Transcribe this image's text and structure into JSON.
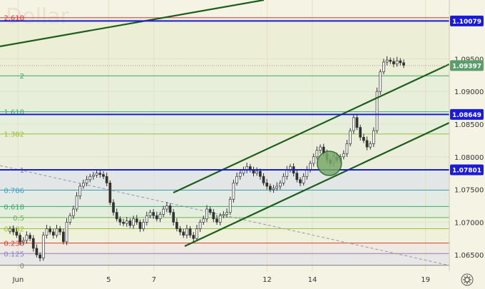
{
  "watermark": "S. Dollar",
  "settings_icon": "gear-icon",
  "chart_data": {
    "type": "candlestick",
    "ylim": [
      1.0625,
      1.104
    ],
    "y_ticks": [
      1.065,
      1.07,
      1.075,
      1.08,
      1.085,
      1.09,
      1.095
    ],
    "y_tick_labels": [
      "1.06500",
      "1.07000",
      "1.07500",
      "1.08000",
      "1.08500",
      "1.09000",
      "1.09500"
    ],
    "x_ticks": [
      {
        "label": "Jun",
        "x": 3
      },
      {
        "label": "5",
        "x": 7
      },
      {
        "label": "7",
        "x": 9
      },
      {
        "label": "12",
        "x": 14
      },
      {
        "label": "14",
        "x": 16
      },
      {
        "label": "19",
        "x": 21
      }
    ],
    "xlim": [
      2.2,
      22.05
    ],
    "price_tags": [
      {
        "label": "1.10079",
        "value": 1.10079,
        "color": "#1a1adb"
      },
      {
        "label": "1.09397",
        "value": 1.09397,
        "color": "#5b9e6e"
      },
      {
        "label": "1.08649",
        "value": 1.08649,
        "color": "#1a1adb"
      },
      {
        "label": "1.07801",
        "value": 1.07801,
        "color": "#1a1adb"
      }
    ],
    "fib_levels": [
      {
        "label": "0",
        "value": 1.0634,
        "color": "#808080"
      },
      {
        "label": "0.125",
        "value": 1.0652,
        "color": "#8a7fd0"
      },
      {
        "label": "0.236",
        "value": 1.0668,
        "color": "#d93a3a"
      },
      {
        "label": "0.382",
        "value": 1.069,
        "color": "#9bbf3a"
      },
      {
        "label": "0.5",
        "value": 1.0707,
        "color": "#6ab04c"
      },
      {
        "label": "0.618",
        "value": 1.0724,
        "color": "#3aa86b"
      },
      {
        "label": "0.786",
        "value": 1.0749,
        "color": "#3a9ec9"
      },
      {
        "label": "1",
        "value": 1.078,
        "color": "#808080"
      },
      {
        "label": "1.382",
        "value": 1.0835,
        "color": "#9bbf3a"
      },
      {
        "label": "1.618",
        "value": 1.0869,
        "color": "#3aa86b"
      },
      {
        "label": "2",
        "value": 1.0924,
        "color": "#3aa86b"
      },
      {
        "label": "2.618",
        "value": 1.1013,
        "color": "#d93a3a"
      }
    ],
    "close": [
      1.069,
      1.0685,
      1.068,
      1.067,
      1.0672,
      1.068,
      1.0675,
      1.066,
      1.065,
      1.0645,
      1.068,
      1.069,
      1.0685,
      1.068,
      1.069,
      1.0685,
      1.067,
      1.07,
      1.071,
      1.072,
      1.074,
      1.0755,
      1.076,
      1.0765,
      1.077,
      1.0772,
      1.0775,
      1.0773,
      1.077,
      1.076,
      1.073,
      1.0715,
      1.0705,
      1.07,
      1.0698,
      1.0702,
      1.0695,
      1.0705,
      1.07,
      1.069,
      1.07,
      1.071,
      1.0715,
      1.071,
      1.0705,
      1.0712,
      1.072,
      1.0725,
      1.0715,
      1.07,
      1.069,
      1.0685,
      1.068,
      1.069,
      1.068,
      1.0675,
      1.069,
      1.07,
      1.0705,
      1.072,
      1.0715,
      1.0705,
      1.07,
      1.071,
      1.0712,
      1.0715,
      1.0735,
      1.076,
      1.077,
      1.0775,
      1.078,
      1.0785,
      1.078,
      1.0775,
      1.0778,
      1.077,
      1.076,
      1.0755,
      1.075,
      1.0752,
      1.0755,
      1.076,
      1.077,
      1.078,
      1.0785,
      1.0775,
      1.0765,
      1.076,
      1.077,
      1.078,
      1.079,
      1.08,
      1.081,
      1.0815,
      1.0805,
      1.0795,
      1.079,
      1.08,
      1.0795,
      1.08,
      1.0805,
      1.082,
      1.084,
      1.086,
      1.0845,
      1.083,
      1.0825,
      1.0815,
      1.082,
      1.084,
      1.09,
      1.093,
      1.0945,
      1.0948,
      1.0946,
      1.0942,
      1.0947,
      1.0944,
      1.094
    ],
    "circle_marker": {
      "x": 16.75,
      "y": 1.079
    }
  }
}
